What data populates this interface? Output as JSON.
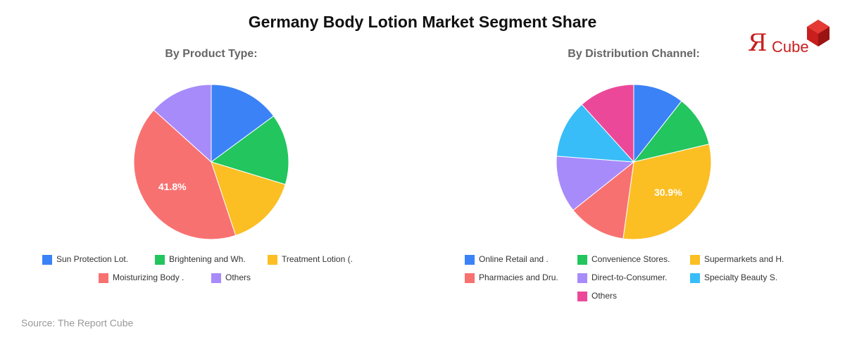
{
  "title": "Germany Body Lotion Market Segment Share",
  "logo": {
    "mark": "Я",
    "text": "Cube"
  },
  "source": "Source: The Report Cube",
  "chart_data": [
    {
      "type": "pie",
      "title": "By Product Type:",
      "categories": [
        "Sun Protection Lot.",
        "Brightening and Wh.",
        "Treatment Lotion (.",
        "Moisturizing Body .",
        "Others"
      ],
      "values": [
        14.9,
        14.8,
        15.2,
        41.8,
        13.3
      ],
      "value_labels": [
        null,
        null,
        null,
        "41.8%",
        null
      ],
      "colors": [
        "#3b82f6",
        "#22c55e",
        "#fbbf24",
        "#f87171",
        "#a78bfa"
      ]
    },
    {
      "type": "pie",
      "title": "By Distribution Channel:",
      "categories": [
        "Online Retail and .",
        "Convenience Stores.",
        "Supermarkets and H.",
        "Pharmacies and Dru.",
        "Direct-to-Consumer.",
        "Specialty Beauty S.",
        "Others"
      ],
      "values": [
        10.6,
        10.7,
        30.9,
        12.1,
        11.9,
        12.1,
        11.7
      ],
      "value_labels": [
        null,
        null,
        "30.9%",
        null,
        null,
        null,
        null
      ],
      "colors": [
        "#3b82f6",
        "#22c55e",
        "#fbbf24",
        "#f87171",
        "#a78bfa",
        "#38bdf8",
        "#ec4899"
      ]
    }
  ]
}
